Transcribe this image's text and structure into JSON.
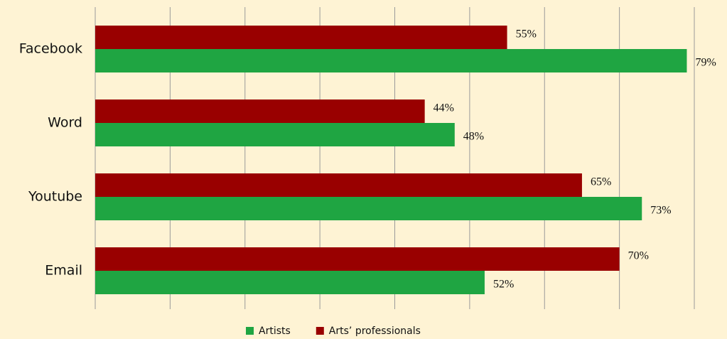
{
  "chart_data": {
    "type": "hbar",
    "categories": [
      "Facebook",
      "Word",
      "Youtube",
      "Email"
    ],
    "series": [
      {
        "name": "Artists",
        "color": "#1fa542",
        "values": [
          79,
          48,
          73,
          52
        ],
        "value_labels": [
          "79%",
          "48%",
          "73%",
          "52%"
        ]
      },
      {
        "name": "Arts’ professionals",
        "color": "#990000",
        "values": [
          55,
          44,
          65,
          70
        ],
        "value_labels": [
          "55%",
          "44%",
          "65%",
          "70%"
        ]
      }
    ],
    "xlim": [
      0,
      80
    ],
    "xticks": [
      0,
      10,
      20,
      30,
      40,
      50,
      60,
      70,
      80
    ],
    "grid": true,
    "legend": "bottom"
  }
}
